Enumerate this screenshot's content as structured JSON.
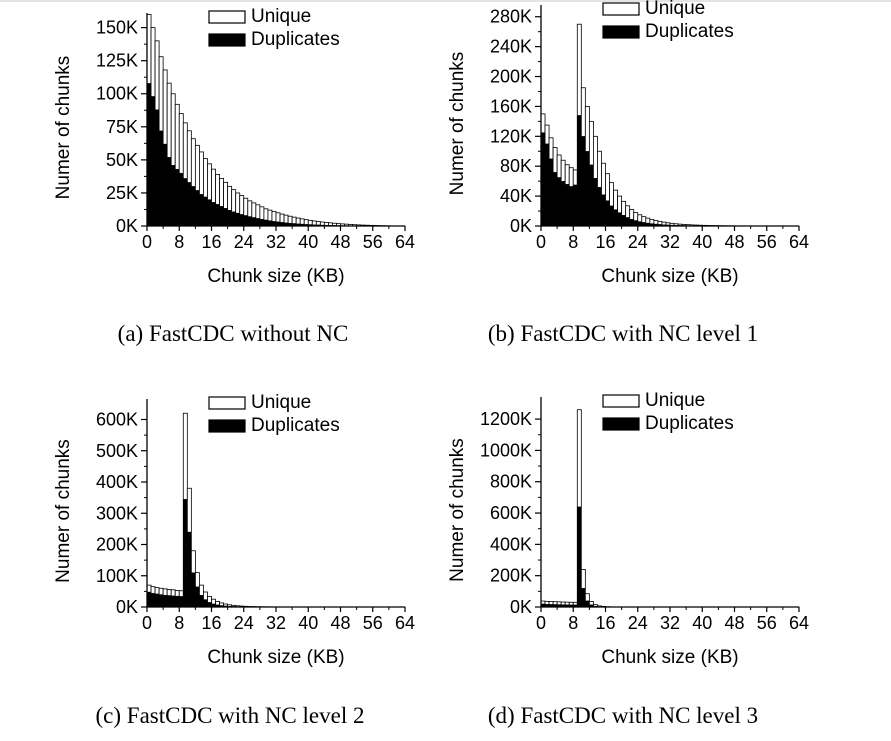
{
  "chart_data": [
    {
      "type": "bar",
      "caption": "(a)  FastCDC without NC",
      "xlabel": "Chunk size (KB)",
      "ylabel": "Numer of chunks",
      "xlim": [
        0,
        64
      ],
      "ylim": [
        0,
        155000
      ],
      "xticks": [
        "0",
        "8",
        "16",
        "24",
        "32",
        "40",
        "48",
        "56",
        "64"
      ],
      "yticks": [
        {
          "v": 0,
          "label": "0K"
        },
        {
          "v": 25000,
          "label": "25K"
        },
        {
          "v": 50000,
          "label": "50K"
        },
        {
          "v": 75000,
          "label": "75K"
        },
        {
          "v": 100000,
          "label": "100K"
        },
        {
          "v": 125000,
          "label": "125K"
        },
        {
          "v": 150000,
          "label": "150K"
        }
      ],
      "legend": [
        "Unique",
        "Duplicates"
      ],
      "bin_width_kb": 1,
      "series": [
        {
          "name": "Unique",
          "values": [
            160000,
            150000,
            140000,
            128000,
            118000,
            108000,
            100000,
            92000,
            85000,
            78000,
            72000,
            66000,
            61000,
            56000,
            51000,
            47000,
            43000,
            39000,
            36000,
            33000,
            30000,
            27500,
            25000,
            23000,
            21000,
            19000,
            17500,
            16000,
            14500,
            13000,
            12000,
            11000,
            10000,
            9000,
            8200,
            7400,
            6700,
            6000,
            5400,
            4800,
            4300,
            3800,
            3400,
            3000,
            2700,
            2400,
            2100,
            1800,
            1600,
            1400,
            1200,
            1000,
            850,
            700,
            600,
            500,
            400,
            320,
            250,
            180,
            120,
            80,
            50,
            30
          ]
        },
        {
          "name": "Duplicates",
          "values": [
            108000,
            98000,
            88000,
            72000,
            62000,
            52000,
            46000,
            43000,
            40000,
            36000,
            33000,
            30000,
            27000,
            24000,
            22000,
            20000,
            18000,
            16500,
            15000,
            13500,
            12000,
            10800,
            9800,
            8800,
            8000,
            7200,
            6500,
            5800,
            5200,
            4600,
            4100,
            3600,
            3200,
            2800,
            2500,
            2200,
            1950,
            1700,
            1500,
            1300,
            1150,
            1000,
            880,
            770,
            670,
            580,
            500,
            430,
            370,
            310,
            260,
            210,
            170,
            140,
            110,
            90,
            70,
            55,
            40,
            30,
            20,
            15,
            10,
            5
          ]
        }
      ]
    },
    {
      "type": "bar",
      "caption": "(b)  FastCDC with NC level 1",
      "xlabel": "Chunk size (KB)",
      "ylabel": "Numer of chunks",
      "xlim": [
        0,
        64
      ],
      "ylim": [
        0,
        285000
      ],
      "xticks": [
        "0",
        "8",
        "16",
        "24",
        "32",
        "40",
        "48",
        "56",
        "64"
      ],
      "yticks": [
        {
          "v": 0,
          "label": "0K"
        },
        {
          "v": 40000,
          "label": "40K"
        },
        {
          "v": 80000,
          "label": "80K"
        },
        {
          "v": 120000,
          "label": "120K"
        },
        {
          "v": 160000,
          "label": "160K"
        },
        {
          "v": 200000,
          "label": "200K"
        },
        {
          "v": 240000,
          "label": "240K"
        },
        {
          "v": 280000,
          "label": "280K"
        }
      ],
      "legend": [
        "Unique",
        "Duplicates"
      ],
      "bin_width_kb": 1,
      "series": [
        {
          "name": "Unique",
          "values": [
            150000,
            135000,
            118000,
            105000,
            95000,
            88000,
            82000,
            78000,
            75000,
            270000,
            185000,
            160000,
            140000,
            120000,
            100000,
            84000,
            70000,
            58000,
            48000,
            40000,
            33000,
            27000,
            22000,
            18000,
            15000,
            12500,
            10500,
            8800,
            7400,
            6200,
            5200,
            4300,
            3600,
            3000,
            2500,
            2100,
            1800,
            1500,
            1250,
            1050,
            880,
            740,
            620,
            520,
            430,
            360,
            300,
            250,
            210,
            175,
            145,
            120,
            100,
            85,
            70,
            58,
            48,
            40,
            33,
            27,
            22,
            18,
            15,
            12
          ]
        },
        {
          "name": "Duplicates",
          "values": [
            125000,
            110000,
            90000,
            72000,
            65000,
            60000,
            56000,
            53000,
            55000,
            148000,
            120000,
            100000,
            82000,
            64000,
            52000,
            42000,
            34000,
            27000,
            22000,
            18000,
            14500,
            11500,
            9200,
            7400,
            6000,
            4900,
            4000,
            3300,
            2700,
            2200,
            1800,
            1500,
            1250,
            1050,
            880,
            740,
            620,
            520,
            430,
            360,
            300,
            250,
            210,
            175,
            145,
            120,
            100,
            85,
            70,
            58,
            48,
            40,
            33,
            27,
            22,
            18,
            15,
            12,
            10,
            8,
            6,
            5,
            4,
            3
          ]
        }
      ]
    },
    {
      "type": "bar",
      "caption": "(c)  FastCDC with NC level 2",
      "xlabel": "Chunk size (KB)",
      "ylabel": "Numer of chunks",
      "xlim": [
        0,
        64
      ],
      "ylim": [
        0,
        640000
      ],
      "xticks": [
        "0",
        "8",
        "16",
        "24",
        "32",
        "40",
        "48",
        "56",
        "64"
      ],
      "yticks": [
        {
          "v": 0,
          "label": "0K"
        },
        {
          "v": 100000,
          "label": "100K"
        },
        {
          "v": 200000,
          "label": "200K"
        },
        {
          "v": 300000,
          "label": "300K"
        },
        {
          "v": 400000,
          "label": "400K"
        },
        {
          "v": 500000,
          "label": "500K"
        },
        {
          "v": 600000,
          "label": "600K"
        }
      ],
      "legend": [
        "Unique",
        "Duplicates"
      ],
      "bin_width_kb": 1,
      "series": [
        {
          "name": "Unique",
          "values": [
            70000,
            65000,
            62000,
            60000,
            58000,
            56000,
            55000,
            53000,
            52000,
            620000,
            380000,
            180000,
            110000,
            70000,
            48000,
            34000,
            25000,
            18000,
            13000,
            9500,
            7000,
            5200,
            3900,
            2900,
            2200,
            1700,
            1300,
            1000,
            800,
            650,
            520,
            420,
            340,
            280,
            230,
            190,
            160,
            130,
            110,
            90,
            75,
            62,
            52,
            44,
            37,
            31,
            26,
            22,
            19,
            16,
            14,
            12,
            10,
            8,
            7,
            6,
            5,
            4,
            3,
            3,
            2,
            2,
            1,
            1
          ]
        },
        {
          "name": "Duplicates",
          "values": [
            48000,
            44000,
            42000,
            40000,
            38000,
            37000,
            36000,
            35000,
            34000,
            345000,
            240000,
            110000,
            65000,
            38000,
            24000,
            15000,
            10000,
            7000,
            5000,
            3600,
            2600,
            1900,
            1400,
            1000,
            750,
            560,
            420,
            320,
            240,
            180,
            140,
            110,
            85,
            65,
            50,
            40,
            32,
            25,
            20,
            16,
            13,
            10,
            8,
            6,
            5,
            4,
            3,
            3,
            2,
            2,
            1,
            1,
            1,
            1,
            1,
            1,
            1,
            1,
            1,
            1,
            1,
            1,
            1,
            1
          ]
        }
      ]
    },
    {
      "type": "bar",
      "caption": "(d)  FastCDC with NC level 3",
      "xlabel": "Chunk size (KB)",
      "ylabel": "Numer of chunks",
      "xlim": [
        0,
        64
      ],
      "ylim": [
        0,
        1290000
      ],
      "xticks": [
        "0",
        "8",
        "16",
        "24",
        "32",
        "40",
        "48",
        "56",
        "64"
      ],
      "yticks": [
        {
          "v": 0,
          "label": "0K"
        },
        {
          "v": 200000,
          "label": "200K"
        },
        {
          "v": 400000,
          "label": "400K"
        },
        {
          "v": 600000,
          "label": "600K"
        },
        {
          "v": 800000,
          "label": "800K"
        },
        {
          "v": 1000000,
          "label": "1000K"
        },
        {
          "v": 1200000,
          "label": "1200K"
        }
      ],
      "legend": [
        "Unique",
        "Duplicates"
      ],
      "bin_width_kb": 1,
      "series": [
        {
          "name": "Unique",
          "values": [
            38000,
            36000,
            35000,
            34000,
            33000,
            32000,
            31000,
            30000,
            30000,
            1260000,
            240000,
            85000,
            35000,
            15000,
            7000,
            3500,
            1800,
            900,
            500,
            280,
            160,
            90,
            50,
            30,
            20,
            12,
            8,
            5,
            3,
            2,
            1,
            1,
            1,
            1,
            1,
            1,
            1,
            1,
            1,
            1,
            1,
            1,
            1,
            1,
            1,
            1,
            1,
            1,
            1,
            1,
            1,
            1,
            1,
            1,
            1,
            1,
            1,
            1,
            1,
            1,
            1,
            1,
            1,
            1
          ]
        },
        {
          "name": "Duplicates",
          "values": [
            20000,
            18000,
            17000,
            16500,
            16000,
            15500,
            15000,
            14500,
            14000,
            640000,
            120000,
            40000,
            15000,
            6000,
            2500,
            1100,
            500,
            240,
            120,
            60,
            30,
            15,
            8,
            4,
            2,
            1,
            1,
            1,
            1,
            1,
            1,
            1,
            1,
            1,
            1,
            1,
            1,
            1,
            1,
            1,
            1,
            1,
            1,
            1,
            1,
            1,
            1,
            1,
            1,
            1,
            1,
            1,
            1,
            1,
            1,
            1,
            1,
            1,
            1,
            1,
            1,
            1,
            1,
            1
          ]
        }
      ]
    }
  ]
}
